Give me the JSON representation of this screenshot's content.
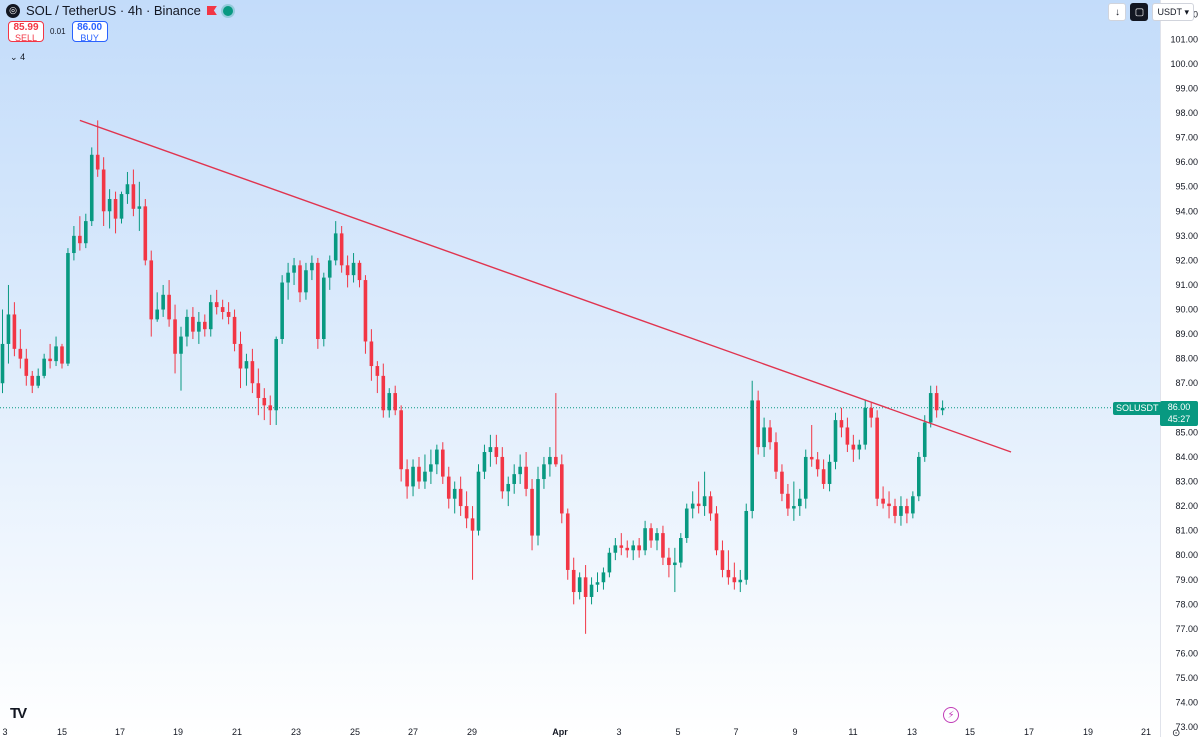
{
  "header": {
    "symbol_title": "SOL / TetherUS · 4h · Binance",
    "sell_price": "85.99",
    "sell_label": "SELL",
    "spread": "0.01",
    "buy_price": "86.00",
    "buy_label": "BUY",
    "indicators_count": "4",
    "currency": "USDT"
  },
  "badges": {
    "symbol_tag": "SOLUSDT",
    "last_price": "86.00",
    "countdown": "45:27"
  },
  "colors": {
    "up": "#089981",
    "down": "#f23645",
    "trendline": "#e0344f",
    "accent": "#2962ff"
  },
  "icons": [
    "tradingview-logo-icon",
    "sol-symbol-icon",
    "flag-icon",
    "live-dot-icon",
    "download-icon",
    "snapshot-icon",
    "chevron-down-icon",
    "lightning-icon"
  ],
  "chart_data": {
    "type": "candlestick",
    "title": "SOL / TetherUS · 4h · Binance",
    "ylim": [
      72.6,
      102.6
    ],
    "y_ticks": [
      "102.00",
      "101.00",
      "100.00",
      "99.00",
      "98.00",
      "97.00",
      "96.00",
      "95.00",
      "94.00",
      "93.00",
      "92.00",
      "91.00",
      "90.00",
      "89.00",
      "88.00",
      "87.00",
      "86.00",
      "85.00",
      "84.00",
      "83.00",
      "82.00",
      "81.00",
      "80.00",
      "79.00",
      "78.00",
      "77.00",
      "76.00",
      "75.00",
      "74.00",
      "73.00"
    ],
    "x_ticks": [
      "3",
      "15",
      "17",
      "19",
      "21",
      "23",
      "25",
      "27",
      "29",
      "Apr",
      "3",
      "5",
      "7",
      "9",
      "11",
      "13",
      "15",
      "17",
      "19",
      "21"
    ],
    "candles": [
      {
        "o": 87.0,
        "h": 90.0,
        "l": 86.6,
        "c": 88.6
      },
      {
        "o": 88.6,
        "h": 91.0,
        "l": 87.8,
        "c": 89.8
      },
      {
        "o": 89.8,
        "h": 90.3,
        "l": 88.1,
        "c": 88.4
      },
      {
        "o": 88.4,
        "h": 89.2,
        "l": 87.6,
        "c": 88.0
      },
      {
        "o": 88.0,
        "h": 88.4,
        "l": 86.9,
        "c": 87.3
      },
      {
        "o": 87.3,
        "h": 87.5,
        "l": 86.6,
        "c": 86.9
      },
      {
        "o": 86.9,
        "h": 87.6,
        "l": 86.8,
        "c": 87.3
      },
      {
        "o": 87.3,
        "h": 88.2,
        "l": 87.2,
        "c": 88.0
      },
      {
        "o": 88.0,
        "h": 88.6,
        "l": 87.6,
        "c": 87.9
      },
      {
        "o": 87.9,
        "h": 88.9,
        "l": 87.7,
        "c": 88.5
      },
      {
        "o": 88.5,
        "h": 88.6,
        "l": 87.6,
        "c": 87.8
      },
      {
        "o": 87.8,
        "h": 92.5,
        "l": 87.7,
        "c": 92.3
      },
      {
        "o": 92.3,
        "h": 93.4,
        "l": 92.0,
        "c": 93.0
      },
      {
        "o": 93.0,
        "h": 93.8,
        "l": 92.4,
        "c": 92.7
      },
      {
        "o": 92.7,
        "h": 93.9,
        "l": 92.5,
        "c": 93.6
      },
      {
        "o": 93.6,
        "h": 96.6,
        "l": 93.4,
        "c": 96.3
      },
      {
        "o": 96.3,
        "h": 97.7,
        "l": 95.4,
        "c": 95.7
      },
      {
        "o": 95.7,
        "h": 96.2,
        "l": 93.4,
        "c": 94.0
      },
      {
        "o": 94.0,
        "h": 94.9,
        "l": 93.3,
        "c": 94.5
      },
      {
        "o": 94.5,
        "h": 94.8,
        "l": 93.1,
        "c": 93.7
      },
      {
        "o": 93.7,
        "h": 94.8,
        "l": 93.5,
        "c": 94.7
      },
      {
        "o": 94.7,
        "h": 95.6,
        "l": 94.3,
        "c": 95.1
      },
      {
        "o": 95.1,
        "h": 95.7,
        "l": 93.8,
        "c": 94.1
      },
      {
        "o": 94.1,
        "h": 95.2,
        "l": 93.2,
        "c": 94.2
      },
      {
        "o": 94.2,
        "h": 94.5,
        "l": 91.8,
        "c": 92.0
      },
      {
        "o": 92.0,
        "h": 92.4,
        "l": 88.9,
        "c": 89.6
      },
      {
        "o": 89.6,
        "h": 90.7,
        "l": 89.5,
        "c": 90.0
      },
      {
        "o": 90.0,
        "h": 91.0,
        "l": 89.7,
        "c": 90.6
      },
      {
        "o": 90.6,
        "h": 91.2,
        "l": 89.3,
        "c": 89.6
      },
      {
        "o": 89.6,
        "h": 90.2,
        "l": 87.4,
        "c": 88.2
      },
      {
        "o": 88.2,
        "h": 89.3,
        "l": 86.7,
        "c": 88.9
      },
      {
        "o": 88.9,
        "h": 90.0,
        "l": 88.5,
        "c": 89.7
      },
      {
        "o": 89.7,
        "h": 90.1,
        "l": 88.8,
        "c": 89.1
      },
      {
        "o": 89.1,
        "h": 89.9,
        "l": 88.6,
        "c": 89.5
      },
      {
        "o": 89.5,
        "h": 89.8,
        "l": 88.9,
        "c": 89.2
      },
      {
        "o": 89.2,
        "h": 90.6,
        "l": 88.9,
        "c": 90.3
      },
      {
        "o": 90.3,
        "h": 90.8,
        "l": 89.8,
        "c": 90.1
      },
      {
        "o": 90.1,
        "h": 90.4,
        "l": 89.6,
        "c": 89.9
      },
      {
        "o": 89.9,
        "h": 90.3,
        "l": 89.4,
        "c": 89.7
      },
      {
        "o": 89.7,
        "h": 90.0,
        "l": 88.3,
        "c": 88.6
      },
      {
        "o": 88.6,
        "h": 89.1,
        "l": 86.8,
        "c": 87.6
      },
      {
        "o": 87.6,
        "h": 88.2,
        "l": 86.9,
        "c": 87.9
      },
      {
        "o": 87.9,
        "h": 88.4,
        "l": 86.6,
        "c": 87.0
      },
      {
        "o": 87.0,
        "h": 87.6,
        "l": 85.7,
        "c": 86.4
      },
      {
        "o": 86.4,
        "h": 86.8,
        "l": 85.5,
        "c": 86.1
      },
      {
        "o": 86.1,
        "h": 86.5,
        "l": 85.3,
        "c": 85.9
      },
      {
        "o": 85.9,
        "h": 88.9,
        "l": 85.3,
        "c": 88.8
      },
      {
        "o": 88.8,
        "h": 91.4,
        "l": 88.6,
        "c": 91.1
      },
      {
        "o": 91.1,
        "h": 91.9,
        "l": 90.4,
        "c": 91.5
      },
      {
        "o": 91.5,
        "h": 92.1,
        "l": 91.0,
        "c": 91.8
      },
      {
        "o": 91.8,
        "h": 92.0,
        "l": 90.3,
        "c": 90.7
      },
      {
        "o": 90.7,
        "h": 91.9,
        "l": 90.4,
        "c": 91.6
      },
      {
        "o": 91.6,
        "h": 92.2,
        "l": 91.2,
        "c": 91.9
      },
      {
        "o": 91.9,
        "h": 92.1,
        "l": 88.4,
        "c": 88.8
      },
      {
        "o": 88.8,
        "h": 91.5,
        "l": 88.5,
        "c": 91.3
      },
      {
        "o": 91.3,
        "h": 92.2,
        "l": 90.8,
        "c": 92.0
      },
      {
        "o": 92.0,
        "h": 93.6,
        "l": 91.8,
        "c": 93.1
      },
      {
        "o": 93.1,
        "h": 93.4,
        "l": 91.5,
        "c": 91.8
      },
      {
        "o": 91.8,
        "h": 92.2,
        "l": 90.9,
        "c": 91.4
      },
      {
        "o": 91.4,
        "h": 92.3,
        "l": 91.1,
        "c": 91.9
      },
      {
        "o": 91.9,
        "h": 92.0,
        "l": 90.9,
        "c": 91.2
      },
      {
        "o": 91.2,
        "h": 91.4,
        "l": 88.2,
        "c": 88.7
      },
      {
        "o": 88.7,
        "h": 89.2,
        "l": 87.1,
        "c": 87.7
      },
      {
        "o": 87.7,
        "h": 87.9,
        "l": 86.6,
        "c": 87.3
      },
      {
        "o": 87.3,
        "h": 87.8,
        "l": 85.6,
        "c": 85.9
      },
      {
        "o": 85.9,
        "h": 86.8,
        "l": 85.6,
        "c": 86.6
      },
      {
        "o": 86.6,
        "h": 86.9,
        "l": 85.7,
        "c": 85.9
      },
      {
        "o": 85.9,
        "h": 86.1,
        "l": 83.0,
        "c": 83.5
      },
      {
        "o": 83.5,
        "h": 83.9,
        "l": 82.3,
        "c": 82.8
      },
      {
        "o": 82.8,
        "h": 83.9,
        "l": 82.4,
        "c": 83.6
      },
      {
        "o": 83.6,
        "h": 84.0,
        "l": 82.7,
        "c": 83.0
      },
      {
        "o": 83.0,
        "h": 84.1,
        "l": 82.7,
        "c": 83.4
      },
      {
        "o": 83.4,
        "h": 84.3,
        "l": 82.9,
        "c": 83.7
      },
      {
        "o": 83.7,
        "h": 84.5,
        "l": 83.3,
        "c": 84.3
      },
      {
        "o": 84.3,
        "h": 84.6,
        "l": 82.9,
        "c": 83.2
      },
      {
        "o": 83.2,
        "h": 83.6,
        "l": 81.9,
        "c": 82.3
      },
      {
        "o": 82.3,
        "h": 83.0,
        "l": 81.7,
        "c": 82.7
      },
      {
        "o": 82.7,
        "h": 83.2,
        "l": 81.6,
        "c": 82.0
      },
      {
        "o": 82.0,
        "h": 82.6,
        "l": 81.1,
        "c": 81.5
      },
      {
        "o": 81.5,
        "h": 82.0,
        "l": 79.0,
        "c": 81.0
      },
      {
        "o": 81.0,
        "h": 83.7,
        "l": 80.8,
        "c": 83.4
      },
      {
        "o": 83.4,
        "h": 84.5,
        "l": 83.1,
        "c": 84.2
      },
      {
        "o": 84.2,
        "h": 84.9,
        "l": 83.6,
        "c": 84.4
      },
      {
        "o": 84.4,
        "h": 84.9,
        "l": 83.7,
        "c": 84.0
      },
      {
        "o": 84.0,
        "h": 84.4,
        "l": 82.3,
        "c": 82.6
      },
      {
        "o": 82.6,
        "h": 83.2,
        "l": 82.0,
        "c": 82.9
      },
      {
        "o": 82.9,
        "h": 83.7,
        "l": 82.5,
        "c": 83.3
      },
      {
        "o": 83.3,
        "h": 84.1,
        "l": 82.9,
        "c": 83.6
      },
      {
        "o": 83.6,
        "h": 84.2,
        "l": 82.4,
        "c": 82.7
      },
      {
        "o": 82.7,
        "h": 83.1,
        "l": 80.2,
        "c": 80.8
      },
      {
        "o": 80.8,
        "h": 83.6,
        "l": 80.4,
        "c": 83.1
      },
      {
        "o": 83.1,
        "h": 84.0,
        "l": 82.7,
        "c": 83.7
      },
      {
        "o": 83.7,
        "h": 84.4,
        "l": 83.2,
        "c": 84.0
      },
      {
        "o": 84.0,
        "h": 86.6,
        "l": 83.6,
        "c": 83.7
      },
      {
        "o": 83.7,
        "h": 84.1,
        "l": 81.3,
        "c": 81.7
      },
      {
        "o": 81.7,
        "h": 81.9,
        "l": 79.0,
        "c": 79.4
      },
      {
        "o": 79.4,
        "h": 79.9,
        "l": 78.0,
        "c": 78.5
      },
      {
        "o": 78.5,
        "h": 79.3,
        "l": 78.2,
        "c": 79.1
      },
      {
        "o": 79.1,
        "h": 79.6,
        "l": 76.8,
        "c": 78.3
      },
      {
        "o": 78.3,
        "h": 79.1,
        "l": 78.0,
        "c": 78.8
      },
      {
        "o": 78.8,
        "h": 79.3,
        "l": 78.5,
        "c": 78.9
      },
      {
        "o": 78.9,
        "h": 79.5,
        "l": 78.6,
        "c": 79.3
      },
      {
        "o": 79.3,
        "h": 80.3,
        "l": 79.1,
        "c": 80.1
      },
      {
        "o": 80.1,
        "h": 80.7,
        "l": 79.8,
        "c": 80.4
      },
      {
        "o": 80.4,
        "h": 80.9,
        "l": 80.0,
        "c": 80.3
      },
      {
        "o": 80.3,
        "h": 80.6,
        "l": 79.9,
        "c": 80.2
      },
      {
        "o": 80.2,
        "h": 80.6,
        "l": 79.8,
        "c": 80.4
      },
      {
        "o": 80.4,
        "h": 80.7,
        "l": 79.9,
        "c": 80.2
      },
      {
        "o": 80.2,
        "h": 81.4,
        "l": 80.0,
        "c": 81.1
      },
      {
        "o": 81.1,
        "h": 81.3,
        "l": 80.3,
        "c": 80.6
      },
      {
        "o": 80.6,
        "h": 81.1,
        "l": 80.2,
        "c": 80.9
      },
      {
        "o": 80.9,
        "h": 81.2,
        "l": 79.6,
        "c": 79.9
      },
      {
        "o": 79.9,
        "h": 80.3,
        "l": 79.1,
        "c": 79.6
      },
      {
        "o": 79.6,
        "h": 80.3,
        "l": 78.5,
        "c": 79.7
      },
      {
        "o": 79.7,
        "h": 80.9,
        "l": 79.5,
        "c": 80.7
      },
      {
        "o": 80.7,
        "h": 82.1,
        "l": 80.5,
        "c": 81.9
      },
      {
        "o": 81.9,
        "h": 82.6,
        "l": 81.5,
        "c": 82.1
      },
      {
        "o": 82.1,
        "h": 83.0,
        "l": 81.7,
        "c": 82.0
      },
      {
        "o": 82.0,
        "h": 83.4,
        "l": 81.6,
        "c": 82.4
      },
      {
        "o": 82.4,
        "h": 82.6,
        "l": 81.4,
        "c": 81.7
      },
      {
        "o": 81.7,
        "h": 82.0,
        "l": 80.0,
        "c": 80.2
      },
      {
        "o": 80.2,
        "h": 80.6,
        "l": 79.1,
        "c": 79.4
      },
      {
        "o": 79.4,
        "h": 80.2,
        "l": 78.8,
        "c": 79.1
      },
      {
        "o": 79.1,
        "h": 79.7,
        "l": 78.6,
        "c": 78.9
      },
      {
        "o": 78.9,
        "h": 79.4,
        "l": 78.5,
        "c": 79.0
      },
      {
        "o": 79.0,
        "h": 82.1,
        "l": 78.8,
        "c": 81.8
      },
      {
        "o": 81.8,
        "h": 87.1,
        "l": 81.5,
        "c": 86.3
      },
      {
        "o": 86.3,
        "h": 86.7,
        "l": 84.1,
        "c": 84.4
      },
      {
        "o": 84.4,
        "h": 85.6,
        "l": 84.0,
        "c": 85.2
      },
      {
        "o": 85.2,
        "h": 85.5,
        "l": 84.3,
        "c": 84.6
      },
      {
        "o": 84.6,
        "h": 85.0,
        "l": 83.1,
        "c": 83.4
      },
      {
        "o": 83.4,
        "h": 83.7,
        "l": 82.2,
        "c": 82.5
      },
      {
        "o": 82.5,
        "h": 82.9,
        "l": 81.6,
        "c": 81.9
      },
      {
        "o": 81.9,
        "h": 83.0,
        "l": 81.4,
        "c": 82.0
      },
      {
        "o": 82.0,
        "h": 82.7,
        "l": 81.6,
        "c": 82.3
      },
      {
        "o": 82.3,
        "h": 84.3,
        "l": 81.9,
        "c": 84.0
      },
      {
        "o": 84.0,
        "h": 85.3,
        "l": 83.6,
        "c": 83.9
      },
      {
        "o": 83.9,
        "h": 84.2,
        "l": 83.2,
        "c": 83.5
      },
      {
        "o": 83.5,
        "h": 83.9,
        "l": 82.7,
        "c": 82.9
      },
      {
        "o": 82.9,
        "h": 84.1,
        "l": 82.6,
        "c": 83.8
      },
      {
        "o": 83.8,
        "h": 85.8,
        "l": 83.5,
        "c": 85.5
      },
      {
        "o": 85.5,
        "h": 86.0,
        "l": 84.8,
        "c": 85.2
      },
      {
        "o": 85.2,
        "h": 85.6,
        "l": 84.2,
        "c": 84.5
      },
      {
        "o": 84.5,
        "h": 84.9,
        "l": 83.8,
        "c": 84.3
      },
      {
        "o": 84.3,
        "h": 84.7,
        "l": 83.9,
        "c": 84.5
      },
      {
        "o": 84.5,
        "h": 86.3,
        "l": 84.3,
        "c": 86.0
      },
      {
        "o": 86.0,
        "h": 86.2,
        "l": 85.2,
        "c": 85.6
      },
      {
        "o": 85.6,
        "h": 85.9,
        "l": 82.0,
        "c": 82.3
      },
      {
        "o": 82.3,
        "h": 82.8,
        "l": 81.9,
        "c": 82.1
      },
      {
        "o": 82.1,
        "h": 82.6,
        "l": 81.5,
        "c": 82.0
      },
      {
        "o": 82.0,
        "h": 82.3,
        "l": 81.3,
        "c": 81.6
      },
      {
        "o": 81.6,
        "h": 82.4,
        "l": 81.2,
        "c": 82.0
      },
      {
        "o": 82.0,
        "h": 82.3,
        "l": 81.3,
        "c": 81.7
      },
      {
        "o": 81.7,
        "h": 82.6,
        "l": 81.5,
        "c": 82.4
      },
      {
        "o": 82.4,
        "h": 84.2,
        "l": 82.2,
        "c": 84.0
      },
      {
        "o": 84.0,
        "h": 85.7,
        "l": 83.8,
        "c": 85.4
      },
      {
        "o": 85.4,
        "h": 86.9,
        "l": 85.2,
        "c": 86.6
      },
      {
        "o": 86.6,
        "h": 86.9,
        "l": 85.6,
        "c": 85.9
      },
      {
        "o": 85.9,
        "h": 86.3,
        "l": 85.7,
        "c": 86.0
      }
    ],
    "trendline": {
      "start": {
        "index": 13.0,
        "price": 97.7
      },
      "end": {
        "index": 169.5,
        "price": 84.2
      }
    },
    "last_price_line": 86.0,
    "grid": false
  }
}
